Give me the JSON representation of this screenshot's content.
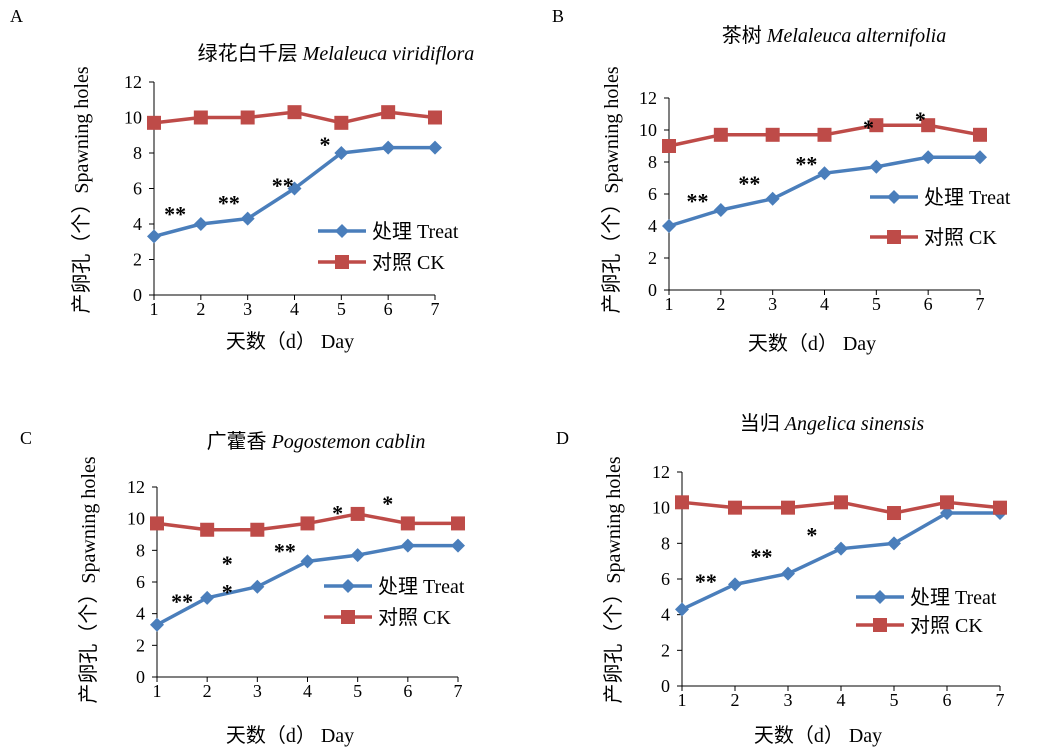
{
  "colors": {
    "treat": "#4a7ebb",
    "ck": "#be4b48",
    "axis": "#000000"
  },
  "chart_data": [
    {
      "type": "line",
      "panel": "A",
      "title_cn": "绿花白千层",
      "title_latin": "Melaleuca viridiflora",
      "xlabel": "天数（d） Day",
      "ylabel": "产卵孔（个）Spawning holes",
      "categories": [
        1,
        2,
        3,
        4,
        5,
        6,
        7
      ],
      "ylim": [
        0,
        12
      ],
      "yticks": [
        0,
        2,
        4,
        6,
        8,
        10,
        12
      ],
      "series": [
        {
          "name": "处理 Treat",
          "marker": "diamond",
          "values": [
            3.3,
            4.0,
            4.3,
            6.0,
            8.0,
            8.3,
            8.3
          ]
        },
        {
          "name": "对照 CK",
          "marker": "square",
          "values": [
            9.7,
            10.0,
            10.0,
            10.3,
            9.7,
            10.3,
            10.0
          ]
        }
      ],
      "annotations": [
        {
          "text": "**",
          "x": 1.45,
          "y": 4.6
        },
        {
          "text": "**",
          "x": 2.6,
          "y": 5.2
        },
        {
          "text": "**",
          "x": 3.75,
          "y": 6.2
        },
        {
          "text": "*",
          "x": 4.65,
          "y": 8.5
        }
      ],
      "grid": false,
      "legend": "bottom-right"
    },
    {
      "type": "line",
      "panel": "B",
      "title_cn": "茶树",
      "title_latin": "Melaleuca alternifolia",
      "xlabel": "天数（d） Day",
      "ylabel": "产卵孔（个）Spawning holes",
      "categories": [
        1,
        2,
        3,
        4,
        5,
        6,
        7
      ],
      "ylim": [
        0,
        12
      ],
      "yticks": [
        0,
        2,
        4,
        6,
        8,
        10,
        12
      ],
      "series": [
        {
          "name": "处理 Treat",
          "marker": "diamond",
          "values": [
            4.0,
            5.0,
            5.7,
            7.3,
            7.7,
            8.3,
            8.3
          ]
        },
        {
          "name": "对照 CK",
          "marker": "square",
          "values": [
            9.0,
            9.7,
            9.7,
            9.7,
            10.3,
            10.3,
            9.7
          ]
        }
      ],
      "annotations": [
        {
          "text": "**",
          "x": 1.55,
          "y": 5.6
        },
        {
          "text": "**",
          "x": 2.55,
          "y": 6.7
        },
        {
          "text": "**",
          "x": 3.65,
          "y": 7.9
        },
        {
          "text": "*",
          "x": 4.85,
          "y": 10.2
        },
        {
          "text": "*",
          "x": 5.85,
          "y": 10.7
        }
      ],
      "grid": false,
      "legend": "bottom-right"
    },
    {
      "type": "line",
      "panel": "C",
      "title_cn": "广藿香",
      "title_latin": "Pogostemon cablin",
      "xlabel": "天数（d） Day",
      "ylabel": "产卵孔（个）Spawning holes",
      "categories": [
        1,
        2,
        3,
        4,
        5,
        6,
        7
      ],
      "ylim": [
        0,
        12
      ],
      "yticks": [
        0,
        2,
        4,
        6,
        8,
        10,
        12
      ],
      "series": [
        {
          "name": "处理 Treat",
          "marker": "diamond",
          "values": [
            3.3,
            5.0,
            5.7,
            7.3,
            7.7,
            8.3,
            8.3
          ]
        },
        {
          "name": "对照 CK",
          "marker": "square",
          "values": [
            9.7,
            9.3,
            9.3,
            9.7,
            10.3,
            9.7,
            9.7
          ]
        }
      ],
      "annotations": [
        {
          "text": "**",
          "x": 1.5,
          "y": 4.8
        },
        {
          "text": "*",
          "x": 2.4,
          "y": 7.2
        },
        {
          "text": "*",
          "x": 2.4,
          "y": 5.4
        },
        {
          "text": "**",
          "x": 3.55,
          "y": 8.0
        },
        {
          "text": "*",
          "x": 4.6,
          "y": 10.4
        },
        {
          "text": "*",
          "x": 5.6,
          "y": 11.0
        }
      ],
      "grid": false,
      "legend": "bottom-right"
    },
    {
      "type": "line",
      "panel": "D",
      "title_cn": "当归",
      "title_latin": "Angelica sinensis",
      "xlabel": "天数（d） Day",
      "ylabel": "产卵孔（个）Spawning holes",
      "categories": [
        1,
        2,
        3,
        4,
        5,
        6,
        7
      ],
      "ylim": [
        0,
        12
      ],
      "yticks": [
        0,
        2,
        4,
        6,
        8,
        10,
        12
      ],
      "series": [
        {
          "name": "处理 Treat",
          "marker": "diamond",
          "values": [
            4.3,
            5.7,
            6.3,
            7.7,
            8.0,
            9.7,
            9.7
          ]
        },
        {
          "name": "对照 CK",
          "marker": "square",
          "values": [
            10.3,
            10.0,
            10.0,
            10.3,
            9.7,
            10.3,
            10.0
          ]
        }
      ],
      "annotations": [
        {
          "text": "**",
          "x": 1.45,
          "y": 5.9
        },
        {
          "text": "**",
          "x": 2.5,
          "y": 7.3
        },
        {
          "text": "*",
          "x": 3.45,
          "y": 8.5
        }
      ],
      "grid": false,
      "legend": "bottom-right"
    }
  ]
}
